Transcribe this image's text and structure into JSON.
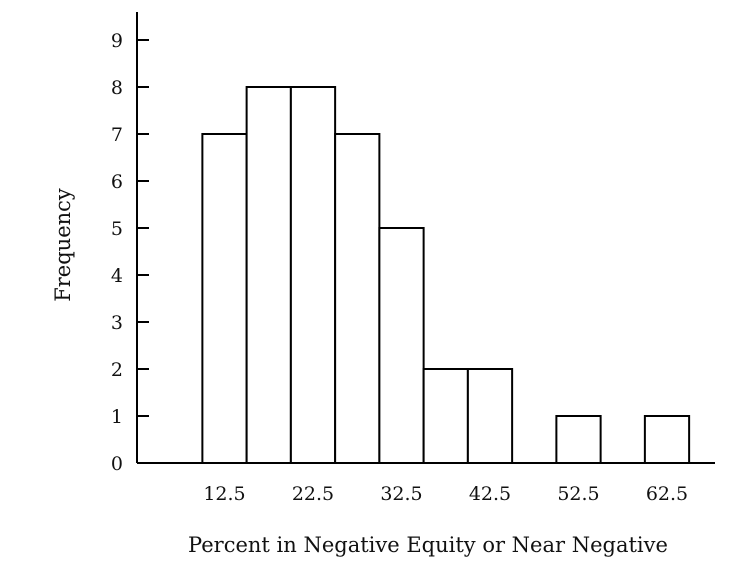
{
  "chart_data": {
    "type": "bar",
    "title": "",
    "xlabel": "Percent in Negative Equity or Near Negative",
    "ylabel": "Frequency",
    "bins": [
      {
        "center": 12.5,
        "value": 7
      },
      {
        "center": 17.5,
        "value": 8
      },
      {
        "center": 22.5,
        "value": 8
      },
      {
        "center": 27.5,
        "value": 7
      },
      {
        "center": 32.5,
        "value": 5
      },
      {
        "center": 37.5,
        "value": 2
      },
      {
        "center": 42.5,
        "value": 2
      },
      {
        "center": 47.5,
        "value": 0
      },
      {
        "center": 52.5,
        "value": 1
      },
      {
        "center": 57.5,
        "value": 0
      },
      {
        "center": 62.5,
        "value": 1
      }
    ],
    "bin_width": 5,
    "x_ticks": [
      "12.5",
      "22.5",
      "32.5",
      "42.5",
      "52.5",
      "62.5"
    ],
    "y_ticks": [
      "0",
      "1",
      "2",
      "3",
      "4",
      "5",
      "6",
      "7",
      "8",
      "9"
    ],
    "xlim": [
      5,
      68
    ],
    "ylim": [
      0,
      9.6
    ],
    "grid": false,
    "colors": {
      "bar_fill": "#ffffff",
      "bar_stroke": "#000000"
    }
  }
}
